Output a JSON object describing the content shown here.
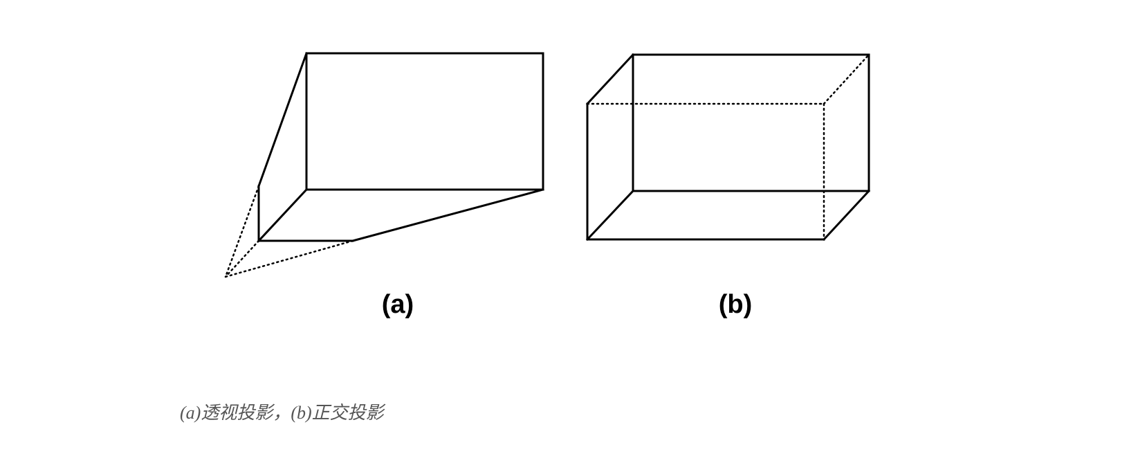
{
  "figure": {
    "panels": [
      {
        "id": "a",
        "label": "(a)"
      },
      {
        "id": "b",
        "label": "(b)"
      }
    ],
    "caption": "(a)透视投影，(b)正交投影"
  },
  "style": {
    "line_color": "#000000",
    "caption_color": "#555555",
    "background": "#ffffff"
  }
}
